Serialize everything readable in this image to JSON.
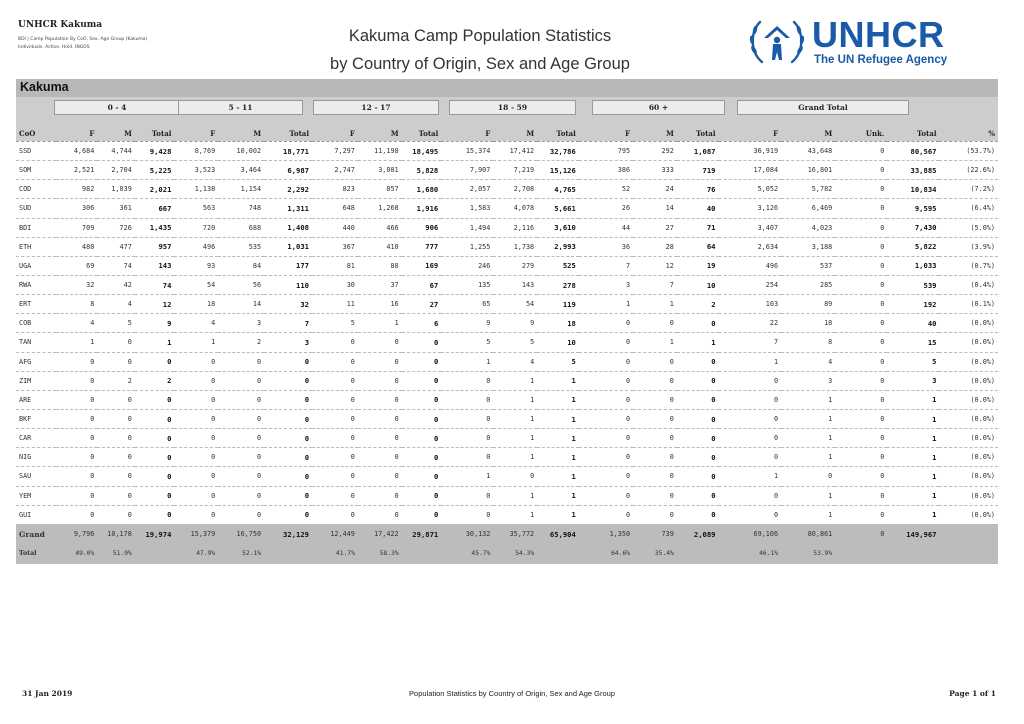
{
  "header": {
    "org": "UNHCR Kakuma",
    "subtitle_line1": "BDI | Camp Population By CoO, Sex, Age Group (Kakuma)",
    "subtitle_line2": "Individuals. Active. Hold. INGOS",
    "title_line1": "Kakuma Camp Population Statistics",
    "title_line2": "by Country of Origin, Sex and Age Group",
    "logo_name": "UNHCR",
    "logo_tagline": "The UN Refugee Agency",
    "logo_color": "#1a5aa6"
  },
  "camp": "Kakuma",
  "age_groups": [
    "0 - 4",
    "5 - 11",
    "12 - 17",
    "18 - 59",
    "60 +",
    "Grand Total"
  ],
  "columns": [
    "CoO",
    "F",
    "M",
    "Total",
    "F",
    "M",
    "Total",
    "F",
    "M",
    "Total",
    "F",
    "M",
    "Total",
    "F",
    "M",
    "Total",
    "F",
    "M",
    "Unk.",
    "Total",
    "%"
  ],
  "rows": [
    [
      "SSD",
      "4,684",
      "4,744",
      "9,428",
      "8,769",
      "10,002",
      "18,771",
      "7,297",
      "11,198",
      "18,495",
      "15,374",
      "17,412",
      "32,786",
      "795",
      "292",
      "1,087",
      "36,919",
      "43,648",
      "0",
      "80,567",
      "(53.7%)"
    ],
    [
      "SOM",
      "2,521",
      "2,704",
      "5,225",
      "3,523",
      "3,464",
      "6,987",
      "2,747",
      "3,081",
      "5,828",
      "7,907",
      "7,219",
      "15,126",
      "386",
      "333",
      "719",
      "17,084",
      "16,801",
      "0",
      "33,885",
      "(22.6%)"
    ],
    [
      "COD",
      "982",
      "1,039",
      "2,021",
      "1,138",
      "1,154",
      "2,292",
      "823",
      "857",
      "1,680",
      "2,057",
      "2,708",
      "4,765",
      "52",
      "24",
      "76",
      "5,052",
      "5,782",
      "0",
      "10,834",
      "(7.2%)"
    ],
    [
      "SUD",
      "306",
      "361",
      "667",
      "563",
      "748",
      "1,311",
      "648",
      "1,268",
      "1,916",
      "1,583",
      "4,078",
      "5,661",
      "26",
      "14",
      "40",
      "3,126",
      "6,469",
      "0",
      "9,595",
      "(6.4%)"
    ],
    [
      "BDI",
      "709",
      "726",
      "1,435",
      "720",
      "688",
      "1,408",
      "440",
      "466",
      "906",
      "1,494",
      "2,116",
      "3,610",
      "44",
      "27",
      "71",
      "3,407",
      "4,023",
      "0",
      "7,430",
      "(5.0%)"
    ],
    [
      "ETH",
      "480",
      "477",
      "957",
      "496",
      "535",
      "1,031",
      "367",
      "410",
      "777",
      "1,255",
      "1,738",
      "2,993",
      "36",
      "28",
      "64",
      "2,634",
      "3,188",
      "0",
      "5,822",
      "(3.9%)"
    ],
    [
      "UGA",
      "69",
      "74",
      "143",
      "93",
      "84",
      "177",
      "81",
      "88",
      "169",
      "246",
      "279",
      "525",
      "7",
      "12",
      "19",
      "496",
      "537",
      "0",
      "1,033",
      "(0.7%)"
    ],
    [
      "RWA",
      "32",
      "42",
      "74",
      "54",
      "56",
      "110",
      "30",
      "37",
      "67",
      "135",
      "143",
      "278",
      "3",
      "7",
      "10",
      "254",
      "285",
      "0",
      "539",
      "(0.4%)"
    ],
    [
      "ERT",
      "8",
      "4",
      "12",
      "18",
      "14",
      "32",
      "11",
      "16",
      "27",
      "65",
      "54",
      "119",
      "1",
      "1",
      "2",
      "103",
      "89",
      "0",
      "192",
      "(0.1%)"
    ],
    [
      "COB",
      "4",
      "5",
      "9",
      "4",
      "3",
      "7",
      "5",
      "1",
      "6",
      "9",
      "9",
      "18",
      "0",
      "0",
      "0",
      "22",
      "18",
      "0",
      "40",
      "(0.0%)"
    ],
    [
      "TAN",
      "1",
      "0",
      "1",
      "1",
      "2",
      "3",
      "0",
      "0",
      "0",
      "5",
      "5",
      "10",
      "0",
      "1",
      "1",
      "7",
      "8",
      "0",
      "15",
      "(0.0%)"
    ],
    [
      "AFG",
      "0",
      "0",
      "0",
      "0",
      "0",
      "0",
      "0",
      "0",
      "0",
      "1",
      "4",
      "5",
      "0",
      "0",
      "0",
      "1",
      "4",
      "0",
      "5",
      "(0.0%)"
    ],
    [
      "ZIM",
      "0",
      "2",
      "2",
      "0",
      "0",
      "0",
      "0",
      "0",
      "0",
      "0",
      "1",
      "1",
      "0",
      "0",
      "0",
      "0",
      "3",
      "0",
      "3",
      "(0.0%)"
    ],
    [
      "ARE",
      "0",
      "0",
      "0",
      "0",
      "0",
      "0",
      "0",
      "0",
      "0",
      "0",
      "1",
      "1",
      "0",
      "0",
      "0",
      "0",
      "1",
      "0",
      "1",
      "(0.0%)"
    ],
    [
      "BKF",
      "0",
      "0",
      "0",
      "0",
      "0",
      "0",
      "0",
      "0",
      "0",
      "0",
      "1",
      "1",
      "0",
      "0",
      "0",
      "0",
      "1",
      "0",
      "1",
      "(0.0%)"
    ],
    [
      "CAR",
      "0",
      "0",
      "0",
      "0",
      "0",
      "0",
      "0",
      "0",
      "0",
      "0",
      "1",
      "1",
      "0",
      "0",
      "0",
      "0",
      "1",
      "0",
      "1",
      "(0.0%)"
    ],
    [
      "NIG",
      "0",
      "0",
      "0",
      "0",
      "0",
      "0",
      "0",
      "0",
      "0",
      "0",
      "1",
      "1",
      "0",
      "0",
      "0",
      "0",
      "1",
      "0",
      "1",
      "(0.0%)"
    ],
    [
      "SAU",
      "0",
      "0",
      "0",
      "0",
      "0",
      "0",
      "0",
      "0",
      "0",
      "1",
      "0",
      "1",
      "0",
      "0",
      "0",
      "1",
      "0",
      "0",
      "1",
      "(0.0%)"
    ],
    [
      "YEM",
      "0",
      "0",
      "0",
      "0",
      "0",
      "0",
      "0",
      "0",
      "0",
      "0",
      "1",
      "1",
      "0",
      "0",
      "0",
      "0",
      "1",
      "0",
      "1",
      "(0.0%)"
    ],
    [
      "GUI",
      "0",
      "0",
      "0",
      "0",
      "0",
      "0",
      "0",
      "0",
      "0",
      "0",
      "1",
      "1",
      "0",
      "0",
      "0",
      "0",
      "1",
      "0",
      "1",
      "(0.0%)"
    ]
  ],
  "grand_total": {
    "label_line1": "Grand",
    "label_line2": "Total",
    "values": [
      "9,796",
      "10,178",
      "19,974",
      "15,379",
      "16,750",
      "32,129",
      "12,449",
      "17,422",
      "29,871",
      "30,132",
      "35,772",
      "65,904",
      "1,350",
      "739",
      "2,089",
      "69,106",
      "80,861",
      "0",
      "149,967",
      ""
    ],
    "percents": [
      "49.0%",
      "51.0%",
      "",
      "47.9%",
      "52.1%",
      "",
      "41.7%",
      "58.3%",
      "",
      "45.7%",
      "54.3%",
      "",
      "64.6%",
      "35.4%",
      "",
      "46.1%",
      "53.9%",
      "",
      "",
      ""
    ]
  },
  "footer": {
    "date": "31 Jan 2019",
    "center": "Population Statistics by Country of Origin, Sex and Age Group",
    "page": "Page 1 of 1"
  }
}
